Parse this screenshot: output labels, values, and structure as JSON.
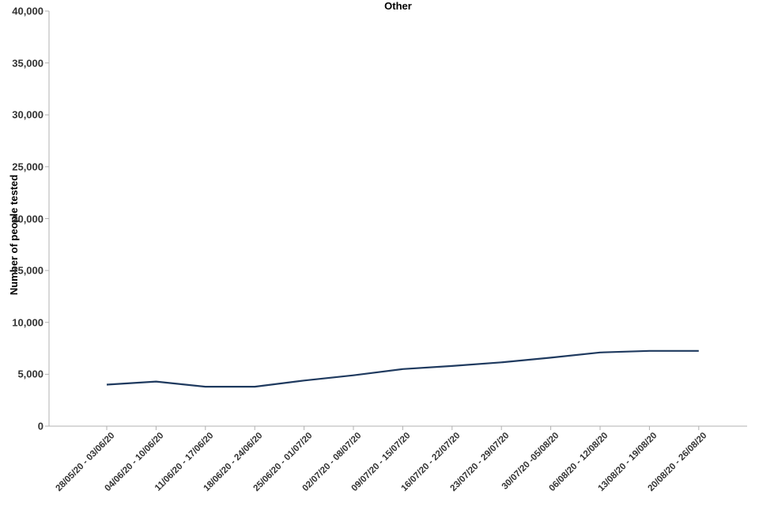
{
  "chart_data": {
    "type": "line",
    "title": "Other",
    "xlabel": "",
    "ylabel": "Number of people tested",
    "categories": [
      "28/05/20 - 03/06/20",
      "04/06/20 - 10/06/20",
      "11/06/20 - 17/06/20",
      "18/06/20 - 24/06/20",
      "25/06/20 - 01/07/20",
      "02/07/20 - 08/07/20",
      "09/07/20 - 15/07/20",
      "16/07/20 - 22/07/20",
      "23/07/20 - 29/07/20",
      "30/07/20 -05/08/20",
      "06/08/20 - 12/08/20",
      "13/08/20 - 19/08/20",
      "20/08/20 - 26/08/20"
    ],
    "series": [
      {
        "name": "Number of people tested",
        "values": [
          4000,
          4300,
          3800,
          3800,
          4400,
          4900,
          5500,
          5800,
          6150,
          6600,
          7100,
          7250,
          7250
        ]
      }
    ],
    "ylim": [
      0,
      40000
    ],
    "ytick_step": 5000,
    "ytick_labels": [
      "0",
      "5,000",
      "10,000",
      "15,000",
      "20,000",
      "25,000",
      "30,000",
      "35,000",
      "40,000"
    ],
    "grid": false,
    "legend_position": "none",
    "line_color": "#1f3a5f",
    "axis_color": "#b0b0b0",
    "tick_text_color": "#333333"
  }
}
